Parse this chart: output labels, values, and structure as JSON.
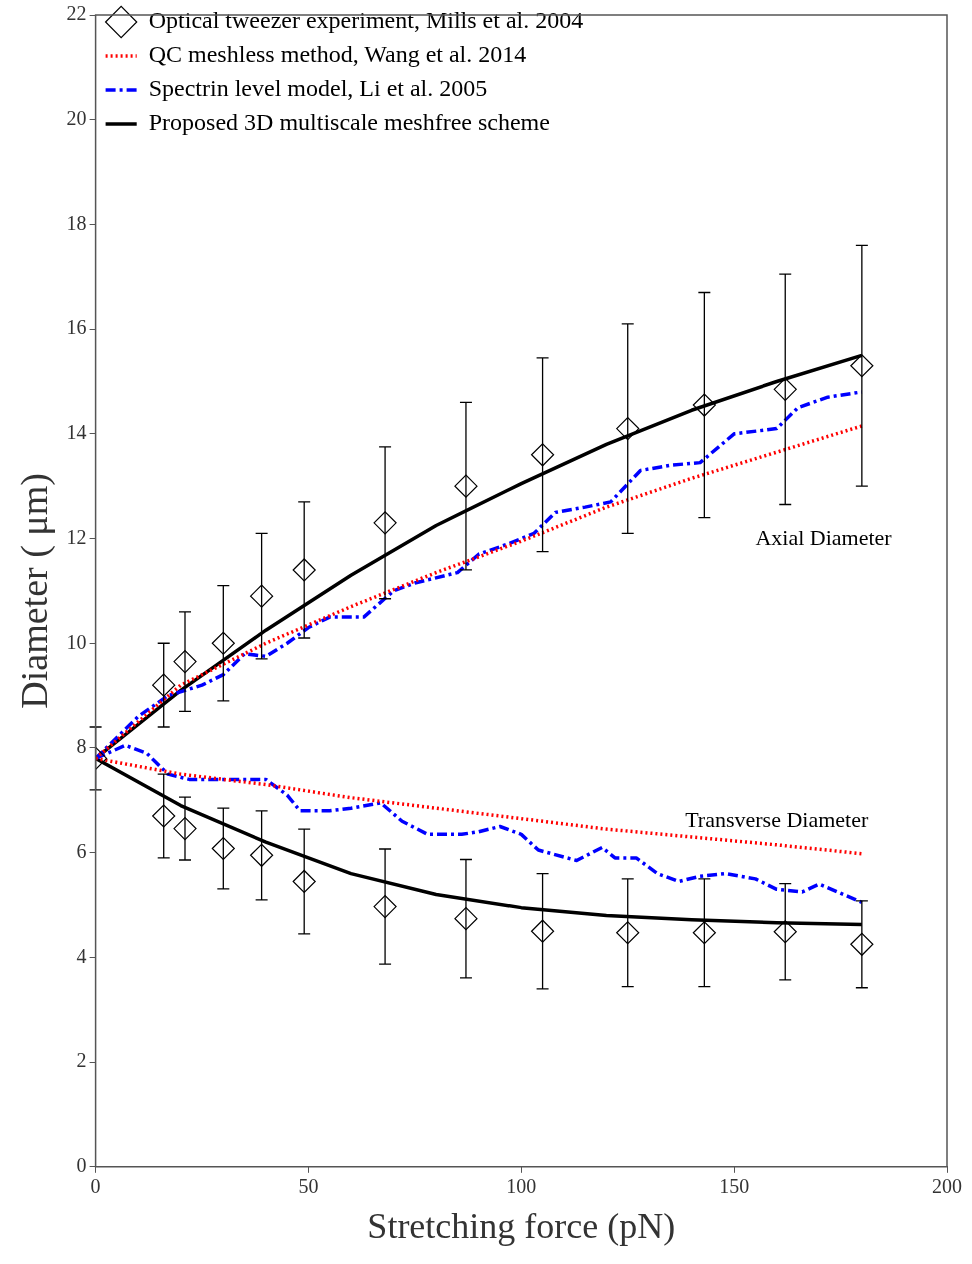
{
  "chart_data": {
    "type": "line",
    "xlabel": "Stretching force (pN)",
    "ylabel": "Diameter ( μm)",
    "xlim": [
      0,
      200
    ],
    "xticks": [
      0,
      50,
      100,
      150,
      200
    ],
    "ylim": [
      0,
      22
    ],
    "yticks": [
      0,
      2,
      4,
      6,
      8,
      10,
      12,
      14,
      16,
      18,
      20,
      22
    ],
    "grid": false,
    "legend": "top left",
    "annotations": [
      "Axial Diameter",
      "Transverse Diameter"
    ],
    "series": [
      {
        "name": "Optical tweezer experiment, Mills et al. 2004",
        "type": "scatter",
        "marker": "diamond",
        "color": "#000000",
        "x": [
          0,
          16,
          21,
          30,
          39,
          49,
          68,
          87,
          105,
          125,
          143,
          162,
          180
        ],
        "values": [
          7.8,
          9.2,
          9.65,
          10.0,
          10.9,
          11.4,
          12.3,
          13.0,
          13.6,
          14.1,
          14.55,
          14.85,
          15.3
        ],
        "errors": [
          0.6,
          0.8,
          0.95,
          1.1,
          1.2,
          1.3,
          1.45,
          1.6,
          1.85,
          2.0,
          2.15,
          2.2,
          2.3
        ]
      },
      {
        "type": "scatter",
        "marker": "diamond",
        "color": "#000000",
        "x": [
          16,
          21,
          30,
          39,
          49,
          68,
          87,
          105,
          125,
          143,
          162,
          180
        ],
        "values": [
          6.7,
          6.46,
          6.08,
          5.95,
          5.45,
          4.97,
          4.74,
          4.5,
          4.47,
          4.47,
          4.49,
          4.25
        ],
        "errors": [
          0.8,
          0.6,
          0.77,
          0.85,
          1.0,
          1.1,
          1.13,
          1.1,
          1.03,
          1.03,
          0.92,
          0.83
        ]
      },
      {
        "name": "QC meshless method, Wang et al. 2014",
        "line_style": "dotted",
        "marker": "none",
        "color": "#ff0000",
        "x": [
          0,
          20,
          40,
          60,
          80,
          100,
          120,
          140,
          160,
          180
        ],
        "values": [
          7.8,
          9.2,
          10.0,
          10.7,
          11.35,
          11.95,
          12.6,
          13.15,
          13.65,
          14.15
        ]
      },
      {
        "line_style": "dotted",
        "marker": "none",
        "color": "#ff0000",
        "x": [
          0,
          20,
          40,
          60,
          80,
          100,
          120,
          140,
          160,
          180
        ],
        "values": [
          7.8,
          7.5,
          7.3,
          7.05,
          6.85,
          6.65,
          6.45,
          6.3,
          6.15,
          5.98
        ]
      },
      {
        "name": "Spectrin level model, Li et al. 2005",
        "line_style": "dashed",
        "marker": "none",
        "color": "#0000ff",
        "x": [
          0,
          10,
          17,
          25,
          30,
          35,
          40,
          45,
          50,
          55,
          63,
          70,
          75,
          85,
          90,
          97,
          103,
          108,
          115,
          121,
          128,
          135,
          142,
          150,
          160,
          165,
          172,
          180
        ],
        "values": [
          7.8,
          8.6,
          9.0,
          9.2,
          9.4,
          9.8,
          9.75,
          10.0,
          10.3,
          10.5,
          10.5,
          11.0,
          11.15,
          11.35,
          11.7,
          11.9,
          12.1,
          12.5,
          12.6,
          12.7,
          13.3,
          13.4,
          13.45,
          14.0,
          14.1,
          14.5,
          14.7,
          14.8
        ]
      },
      {
        "line_style": "dashed",
        "marker": "none",
        "color": "#0000ff",
        "x": [
          0,
          7,
          12,
          17,
          22,
          30,
          40,
          45,
          48,
          55,
          60,
          67,
          72,
          78,
          86,
          90,
          95,
          100,
          104,
          113,
          119,
          122,
          127,
          132,
          137,
          142,
          148,
          155,
          160,
          166,
          170,
          180
        ],
        "values": [
          7.8,
          8.05,
          7.9,
          7.5,
          7.4,
          7.4,
          7.4,
          7.1,
          6.8,
          6.8,
          6.85,
          6.95,
          6.6,
          6.35,
          6.35,
          6.4,
          6.5,
          6.35,
          6.05,
          5.85,
          6.1,
          5.9,
          5.9,
          5.6,
          5.45,
          5.55,
          5.6,
          5.5,
          5.3,
          5.25,
          5.4,
          5.05
        ]
      },
      {
        "name": "Proposed 3D multiscale meshfree scheme",
        "line_style": "solid",
        "marker": "none",
        "color": "#000000",
        "x": [
          0,
          20,
          40,
          60,
          80,
          100,
          120,
          140,
          160,
          180
        ],
        "values": [
          7.8,
          9.1,
          10.25,
          11.3,
          12.25,
          13.05,
          13.8,
          14.45,
          15.0,
          15.5
        ]
      },
      {
        "line_style": "solid",
        "marker": "none",
        "color": "#000000",
        "x": [
          0,
          20,
          40,
          60,
          80,
          100,
          120,
          140,
          160,
          180
        ],
        "values": [
          7.8,
          6.9,
          6.2,
          5.6,
          5.2,
          4.95,
          4.8,
          4.72,
          4.66,
          4.63
        ]
      }
    ]
  }
}
